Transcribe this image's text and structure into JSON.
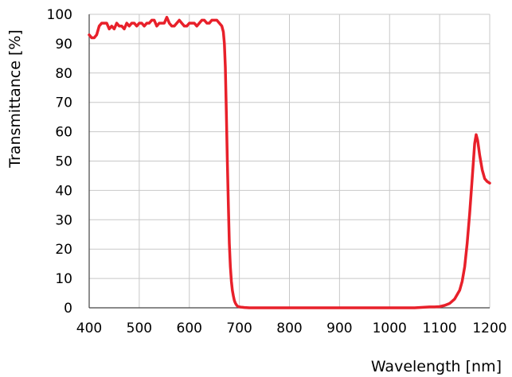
{
  "chart_data": {
    "type": "line",
    "title": "",
    "xlabel": "Wavelength [nm]",
    "ylabel": "Transmittance  [%]",
    "xlim": [
      400,
      1200
    ],
    "ylim": [
      0,
      100
    ],
    "x_ticks": [
      400,
      500,
      600,
      700,
      800,
      900,
      1000,
      1100,
      1200
    ],
    "y_ticks": [
      0,
      10,
      20,
      30,
      40,
      50,
      60,
      70,
      80,
      90,
      100
    ],
    "x_tick_labels": [
      "400",
      "500",
      "600",
      "700",
      "800",
      "900",
      "1000",
      "1100",
      "1200"
    ],
    "y_tick_labels": [
      "0",
      "10",
      "20",
      "30",
      "40",
      "50",
      "60",
      "70",
      "80",
      "90",
      "100"
    ],
    "grid": true,
    "legend": "none",
    "series": [
      {
        "color": "#e8202a",
        "x": [
          400,
          405,
          410,
          415,
          420,
          425,
          430,
          435,
          440,
          445,
          450,
          455,
          460,
          465,
          470,
          475,
          480,
          485,
          490,
          495,
          500,
          505,
          510,
          515,
          520,
          525,
          530,
          535,
          540,
          545,
          550,
          555,
          560,
          565,
          570,
          575,
          580,
          585,
          590,
          595,
          600,
          605,
          610,
          615,
          620,
          625,
          630,
          635,
          640,
          645,
          650,
          655,
          660,
          665,
          668,
          670,
          672,
          674,
          676,
          678,
          680,
          682,
          684,
          686,
          688,
          690,
          692,
          694,
          696,
          698,
          700,
          705,
          710,
          720,
          740,
          760,
          800,
          850,
          900,
          950,
          1000,
          1050,
          1080,
          1090,
          1100,
          1110,
          1120,
          1130,
          1140,
          1145,
          1150,
          1155,
          1160,
          1165,
          1170,
          1173,
          1176,
          1180,
          1185,
          1190,
          1195,
          1200
        ],
        "y": [
          93,
          92,
          92,
          93,
          96,
          97,
          97,
          97,
          95,
          96,
          95,
          97,
          96,
          96,
          95,
          97,
          96,
          97,
          97,
          96,
          97,
          97,
          96,
          97,
          97,
          98,
          98,
          96,
          97,
          97,
          97,
          99,
          97,
          96,
          96,
          97,
          98,
          97,
          96,
          96,
          97,
          97,
          97,
          96,
          97,
          98,
          98,
          97,
          97,
          98,
          98,
          98,
          97,
          96,
          94,
          90,
          82,
          66,
          50,
          35,
          22,
          14,
          9,
          6,
          4,
          2.5,
          1.6,
          1.0,
          0.6,
          0.4,
          0.3,
          0.2,
          0.1,
          0,
          0,
          0,
          0,
          0,
          0,
          0,
          0,
          0,
          0.3,
          0.3,
          0.4,
          0.8,
          1.5,
          3,
          6,
          9,
          14,
          22,
          32,
          44,
          56,
          59,
          57,
          52,
          47,
          44,
          43,
          42.5
        ]
      }
    ]
  }
}
